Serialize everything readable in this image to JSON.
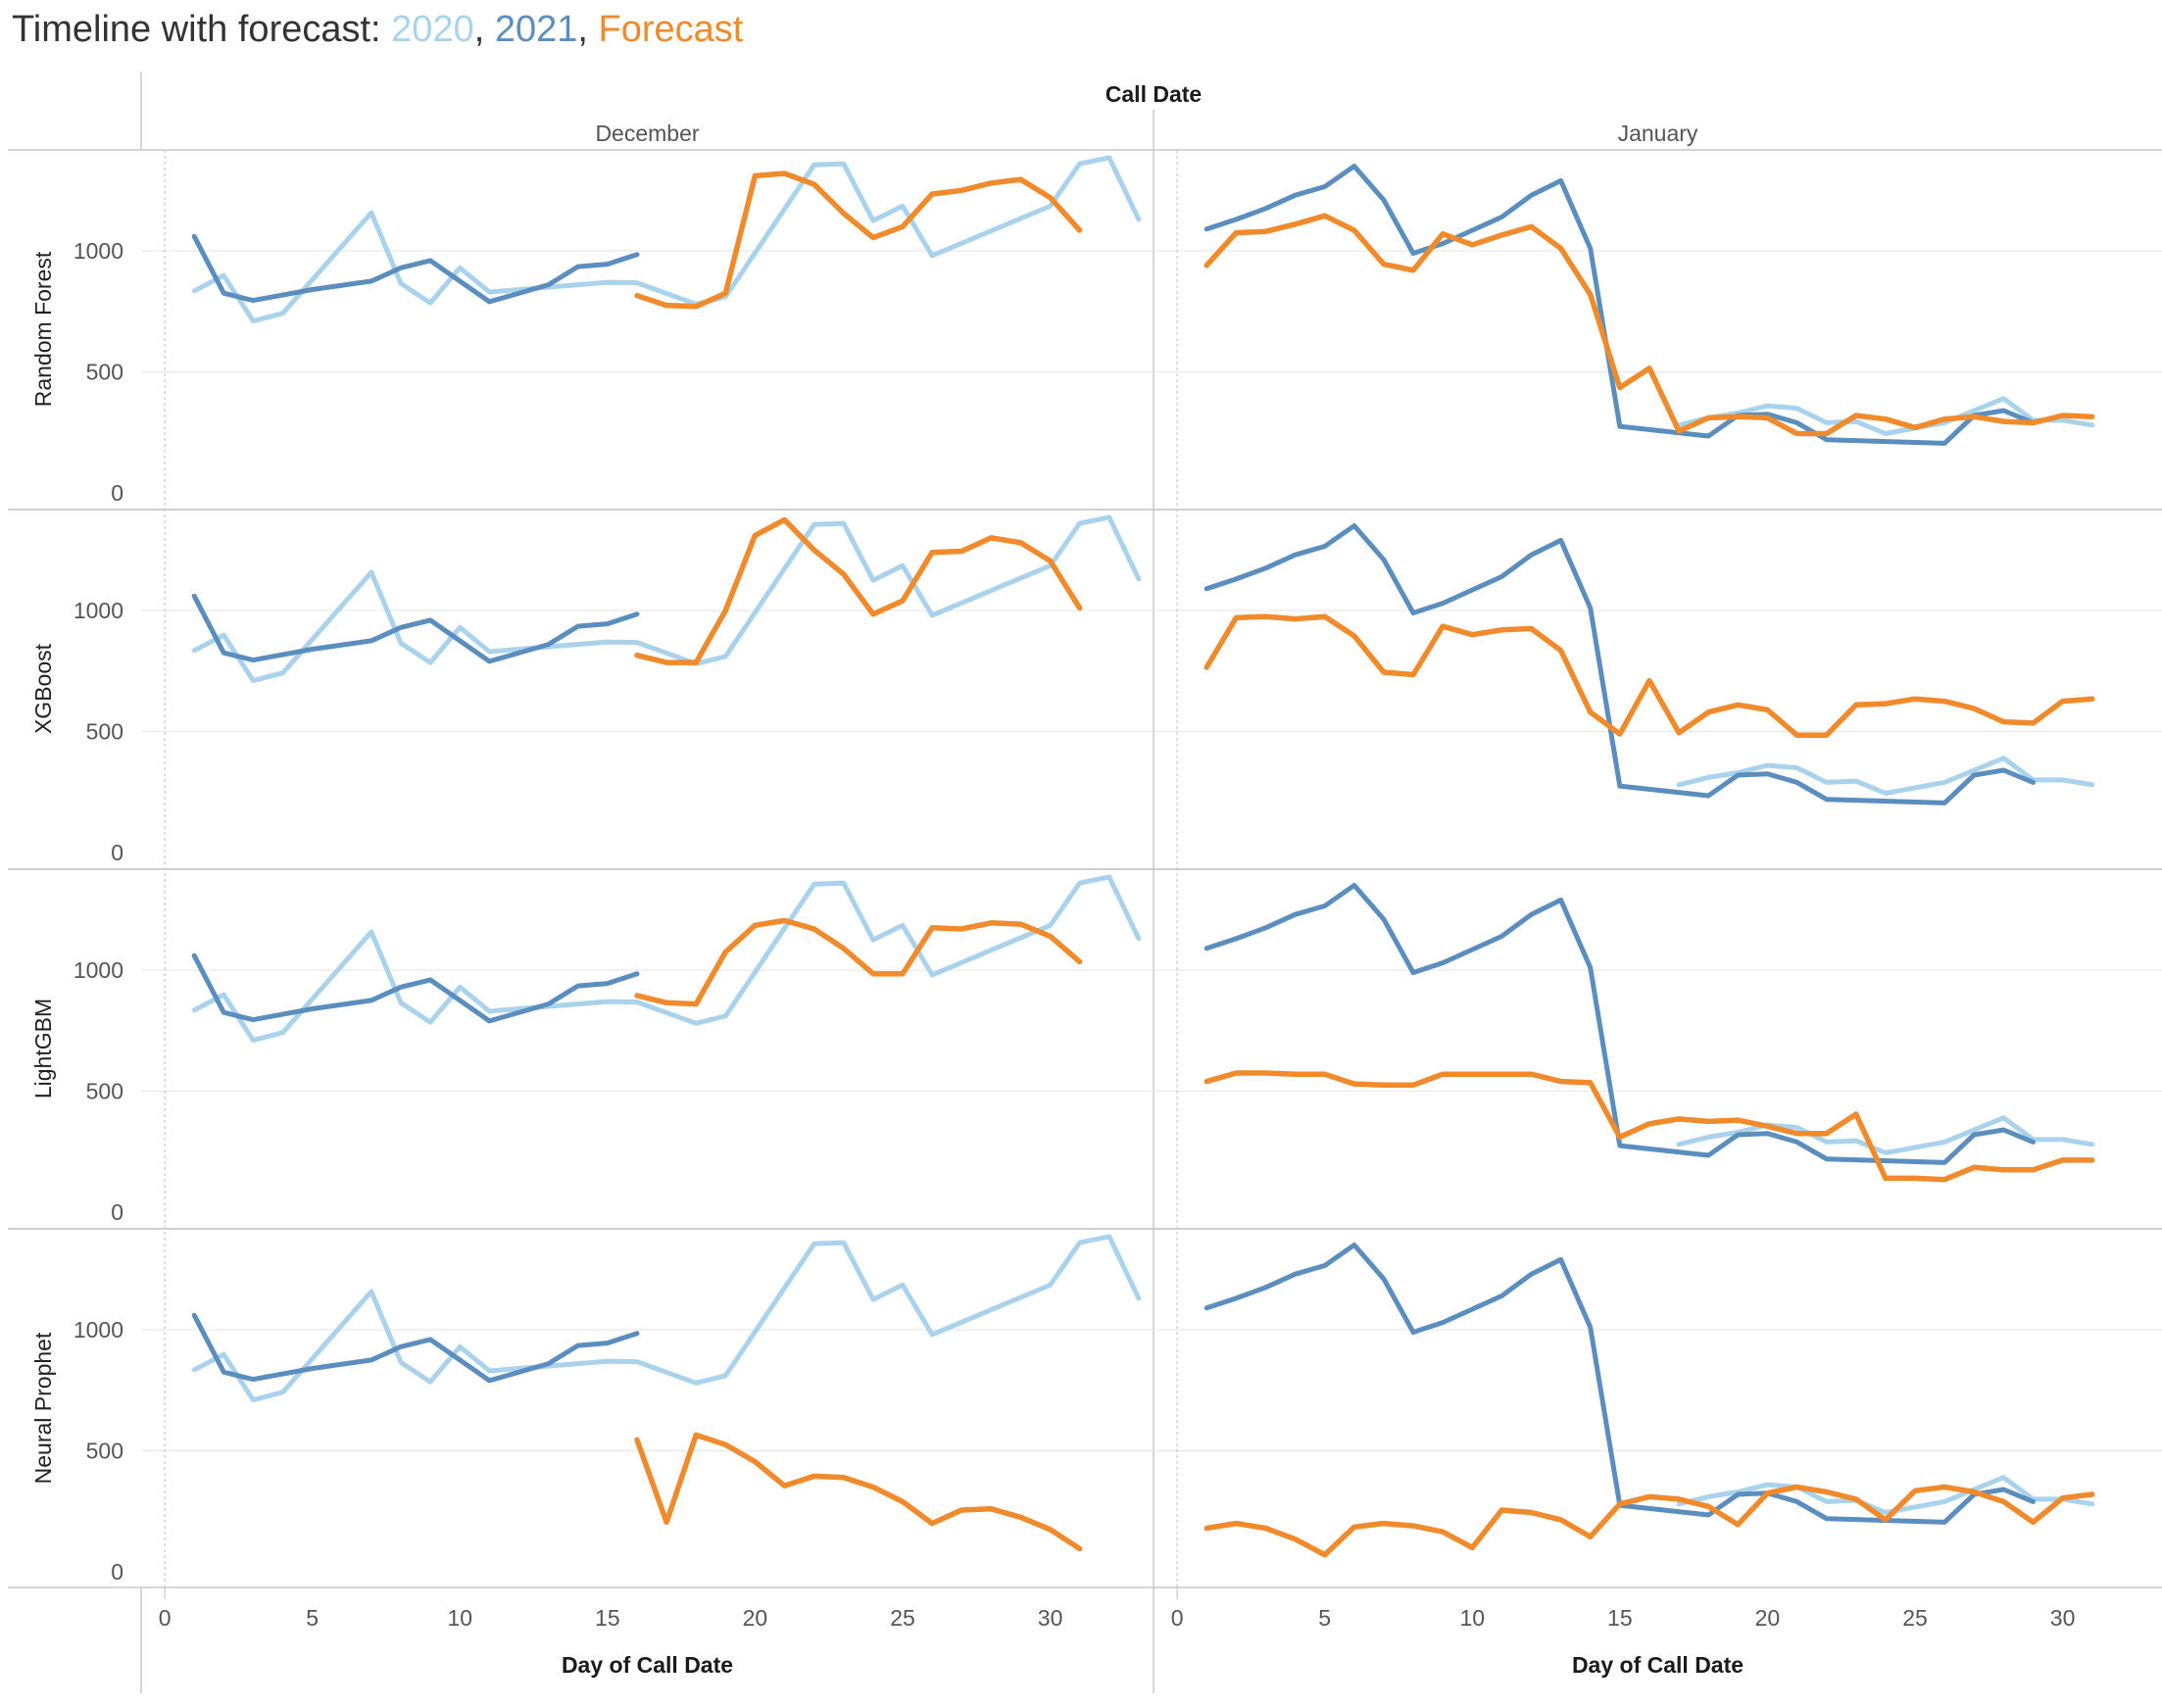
{
  "title": {
    "prefix": "Timeline with forecast: ",
    "item_2020": "2020",
    "sep1": ", ",
    "item_2021": "2021",
    "sep2": ", ",
    "item_forecast": "Forecast"
  },
  "colors": {
    "title_text": "#333333",
    "s2020": "#a9d3ec",
    "s2021": "#5a8ebf",
    "forecast": "#f08a2a",
    "gridline": "#e6e6e6",
    "divider": "#c8c8c8",
    "zero_line": "#c8c8c8"
  },
  "chart_data": {
    "type": "line",
    "column_header": "Call Date",
    "columns": [
      "December",
      "January"
    ],
    "rows": [
      "Random Forest",
      "XGBoost",
      "LightGBM",
      "Neural Prophet"
    ],
    "x_axis_label": "Day of Call Date",
    "xlim": [
      -0.8,
      33.5
    ],
    "x_ticks": [
      0,
      5,
      10,
      15,
      20,
      25,
      30
    ],
    "ylim": [
      0,
      1450
    ],
    "y_ticks": [
      0,
      500,
      1000
    ],
    "series_names": [
      "2020",
      "2021",
      "Forecast"
    ],
    "actuals": {
      "December": {
        "s2020": [
          [
            1,
            835
          ],
          [
            2,
            898
          ],
          [
            3,
            710
          ],
          [
            4,
            742
          ],
          [
            7,
            1158
          ],
          [
            8,
            865
          ],
          [
            9,
            785
          ],
          [
            10,
            930
          ],
          [
            11,
            830
          ],
          [
            15,
            870
          ],
          [
            16,
            868
          ],
          [
            18,
            780
          ],
          [
            19,
            810
          ],
          [
            22,
            1355
          ],
          [
            23,
            1360
          ],
          [
            24,
            1125
          ],
          [
            25,
            1185
          ],
          [
            26,
            980
          ],
          [
            30,
            1185
          ],
          [
            31,
            1360
          ],
          [
            32,
            1385
          ],
          [
            33,
            1130
          ]
        ],
        "s2021": [
          [
            1,
            1060
          ],
          [
            2,
            825
          ],
          [
            3,
            795
          ],
          [
            5,
            840
          ],
          [
            7,
            875
          ],
          [
            8,
            930
          ],
          [
            9,
            960
          ],
          [
            10,
            875
          ],
          [
            11,
            790
          ],
          [
            13,
            860
          ],
          [
            14,
            935
          ],
          [
            15,
            945
          ],
          [
            16,
            985
          ]
        ]
      },
      "January": {
        "s2020": [
          [
            17,
            280
          ],
          [
            18,
            310
          ],
          [
            19,
            330
          ],
          [
            20,
            360
          ],
          [
            21,
            350
          ],
          [
            22,
            290
          ],
          [
            23,
            295
          ],
          [
            24,
            245
          ],
          [
            26,
            290
          ],
          [
            28,
            390
          ],
          [
            29,
            300
          ],
          [
            30,
            300
          ],
          [
            31,
            280
          ]
        ],
        "s2021": [
          [
            1,
            1090
          ],
          [
            2,
            1130
          ],
          [
            3,
            1175
          ],
          [
            4,
            1230
          ],
          [
            5,
            1265
          ],
          [
            6,
            1350
          ],
          [
            7,
            1210
          ],
          [
            8,
            990
          ],
          [
            9,
            1030
          ],
          [
            10,
            1085
          ],
          [
            11,
            1140
          ],
          [
            12,
            1230
          ],
          [
            13,
            1290
          ],
          [
            14,
            1010
          ],
          [
            15,
            275
          ],
          [
            18,
            235
          ],
          [
            19,
            320
          ],
          [
            20,
            325
          ],
          [
            21,
            290
          ],
          [
            22,
            220
          ],
          [
            26,
            205
          ],
          [
            27,
            320
          ],
          [
            28,
            340
          ],
          [
            29,
            290
          ]
        ]
      }
    },
    "forecasts": {
      "Random Forest": {
        "December": [
          [
            16,
            815
          ],
          [
            17,
            775
          ],
          [
            18,
            770
          ],
          [
            19,
            825
          ],
          [
            20,
            1310
          ],
          [
            21,
            1320
          ],
          [
            22,
            1275
          ],
          [
            23,
            1155
          ],
          [
            24,
            1055
          ],
          [
            25,
            1100
          ],
          [
            26,
            1235
          ],
          [
            27,
            1250
          ],
          [
            28,
            1280
          ],
          [
            29,
            1295
          ],
          [
            30,
            1220
          ],
          [
            31,
            1085
          ]
        ],
        "January": [
          [
            1,
            940
          ],
          [
            2,
            1075
          ],
          [
            3,
            1080
          ],
          [
            4,
            1110
          ],
          [
            5,
            1145
          ],
          [
            6,
            1085
          ],
          [
            7,
            945
          ],
          [
            8,
            920
          ],
          [
            9,
            1070
          ],
          [
            10,
            1025
          ],
          [
            11,
            1065
          ],
          [
            12,
            1100
          ],
          [
            13,
            1010
          ],
          [
            14,
            820
          ],
          [
            15,
            435
          ],
          [
            16,
            515
          ],
          [
            17,
            255
          ],
          [
            18,
            310
          ],
          [
            19,
            315
          ],
          [
            20,
            310
          ],
          [
            21,
            245
          ],
          [
            22,
            245
          ],
          [
            23,
            320
          ],
          [
            24,
            305
          ],
          [
            25,
            270
          ],
          [
            26,
            305
          ],
          [
            27,
            315
          ],
          [
            28,
            295
          ],
          [
            29,
            290
          ],
          [
            30,
            320
          ],
          [
            31,
            315
          ]
        ]
      },
      "XGBoost": {
        "December": [
          [
            16,
            815
          ],
          [
            17,
            785
          ],
          [
            18,
            785
          ],
          [
            19,
            1000
          ],
          [
            20,
            1310
          ],
          [
            21,
            1375
          ],
          [
            22,
            1250
          ],
          [
            23,
            1150
          ],
          [
            24,
            985
          ],
          [
            25,
            1040
          ],
          [
            26,
            1240
          ],
          [
            27,
            1245
          ],
          [
            28,
            1300
          ],
          [
            29,
            1280
          ],
          [
            30,
            1205
          ],
          [
            31,
            1010
          ]
        ],
        "January": [
          [
            1,
            765
          ],
          [
            2,
            970
          ],
          [
            3,
            975
          ],
          [
            4,
            965
          ],
          [
            5,
            975
          ],
          [
            6,
            895
          ],
          [
            7,
            745
          ],
          [
            8,
            735
          ],
          [
            9,
            935
          ],
          [
            10,
            900
          ],
          [
            11,
            920
          ],
          [
            12,
            925
          ],
          [
            13,
            835
          ],
          [
            14,
            580
          ],
          [
            15,
            490
          ],
          [
            16,
            710
          ],
          [
            17,
            495
          ],
          [
            18,
            580
          ],
          [
            19,
            610
          ],
          [
            20,
            590
          ],
          [
            21,
            485
          ],
          [
            22,
            485
          ],
          [
            23,
            610
          ],
          [
            24,
            615
          ],
          [
            25,
            635
          ],
          [
            26,
            625
          ],
          [
            27,
            595
          ],
          [
            28,
            540
          ],
          [
            29,
            535
          ],
          [
            30,
            625
          ],
          [
            31,
            635
          ]
        ]
      },
      "LightGBM": {
        "December": [
          [
            16,
            895
          ],
          [
            17,
            865
          ],
          [
            18,
            860
          ],
          [
            19,
            1075
          ],
          [
            20,
            1185
          ],
          [
            21,
            1205
          ],
          [
            22,
            1170
          ],
          [
            23,
            1090
          ],
          [
            24,
            985
          ],
          [
            25,
            985
          ],
          [
            26,
            1175
          ],
          [
            27,
            1170
          ],
          [
            28,
            1195
          ],
          [
            29,
            1190
          ],
          [
            30,
            1140
          ],
          [
            31,
            1035
          ]
        ],
        "January": [
          [
            1,
            540
          ],
          [
            2,
            575
          ],
          [
            3,
            575
          ],
          [
            4,
            570
          ],
          [
            5,
            570
          ],
          [
            6,
            530
          ],
          [
            7,
            525
          ],
          [
            8,
            525
          ],
          [
            9,
            570
          ],
          [
            10,
            570
          ],
          [
            11,
            570
          ],
          [
            12,
            570
          ],
          [
            13,
            540
          ],
          [
            14,
            535
          ],
          [
            15,
            310
          ],
          [
            16,
            365
          ],
          [
            17,
            385
          ],
          [
            18,
            375
          ],
          [
            19,
            380
          ],
          [
            20,
            355
          ],
          [
            21,
            325
          ],
          [
            22,
            325
          ],
          [
            23,
            405
          ],
          [
            24,
            140
          ],
          [
            25,
            140
          ],
          [
            26,
            135
          ],
          [
            27,
            185
          ],
          [
            28,
            175
          ],
          [
            29,
            175
          ],
          [
            30,
            215
          ],
          [
            31,
            215
          ]
        ]
      },
      "Neural Prophet": {
        "December": [
          [
            16,
            545
          ],
          [
            17,
            205
          ],
          [
            18,
            565
          ],
          [
            19,
            525
          ],
          [
            20,
            455
          ],
          [
            21,
            355
          ],
          [
            22,
            395
          ],
          [
            23,
            390
          ],
          [
            24,
            350
          ],
          [
            25,
            290
          ],
          [
            26,
            200
          ],
          [
            27,
            255
          ],
          [
            28,
            260
          ],
          [
            29,
            225
          ],
          [
            30,
            175
          ],
          [
            31,
            95
          ]
        ],
        "January": [
          [
            1,
            180
          ],
          [
            2,
            200
          ],
          [
            3,
            180
          ],
          [
            4,
            135
          ],
          [
            5,
            70
          ],
          [
            6,
            185
          ],
          [
            7,
            200
          ],
          [
            8,
            190
          ],
          [
            9,
            165
          ],
          [
            10,
            100
          ],
          [
            11,
            255
          ],
          [
            12,
            245
          ],
          [
            13,
            215
          ],
          [
            14,
            145
          ],
          [
            15,
            280
          ],
          [
            16,
            310
          ],
          [
            17,
            300
          ],
          [
            18,
            270
          ],
          [
            19,
            195
          ],
          [
            20,
            325
          ],
          [
            21,
            350
          ],
          [
            22,
            330
          ],
          [
            23,
            300
          ],
          [
            24,
            215
          ],
          [
            25,
            335
          ],
          [
            26,
            350
          ],
          [
            27,
            330
          ],
          [
            28,
            290
          ],
          [
            29,
            205
          ],
          [
            30,
            305
          ],
          [
            31,
            320
          ]
        ]
      }
    }
  }
}
